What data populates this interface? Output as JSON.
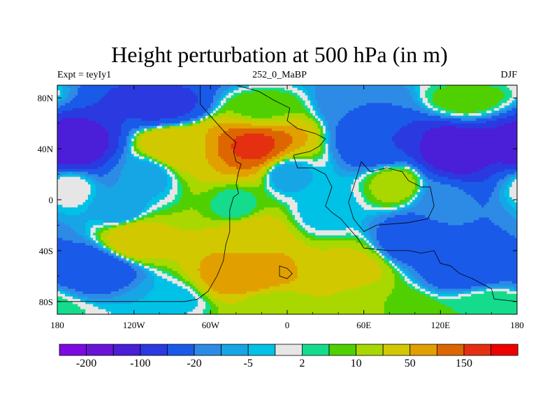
{
  "title": "Height perturbation at 500 hPa (in m)",
  "subtitle_left": "Expt = teyIy1",
  "subtitle_center": "252_0_MaBP",
  "subtitle_right": "DJF",
  "chart_data": {
    "type": "filled-contour map",
    "variable": "Height perturbation at 500 hPa",
    "units": "m",
    "xlim": [
      -180,
      180
    ],
    "ylim": [
      -90,
      90
    ],
    "x_ticks": [
      {
        "value": -180,
        "label": "180"
      },
      {
        "value": -120,
        "label": "120W"
      },
      {
        "value": -60,
        "label": "60W"
      },
      {
        "value": 0,
        "label": "0"
      },
      {
        "value": 60,
        "label": "60E"
      },
      {
        "value": 120,
        "label": "120E"
      },
      {
        "value": 180,
        "label": "180"
      }
    ],
    "y_ticks": [
      {
        "value": 80,
        "label": "80N"
      },
      {
        "value": 40,
        "label": "40N"
      },
      {
        "value": 0,
        "label": "0"
      },
      {
        "value": -40,
        "label": "40S"
      },
      {
        "value": -80,
        "label": "80S"
      }
    ],
    "colorbar": {
      "colors": [
        "#7d0ae3",
        "#6a14d8",
        "#4b1ed8",
        "#2a3ae0",
        "#1a5ae8",
        "#2d8be6",
        "#16a6e6",
        "#00c2e6",
        "#e6e6e6",
        "#14dc8c",
        "#50d000",
        "#a8d800",
        "#d2c800",
        "#e1a000",
        "#de6600",
        "#e43010",
        "#ee0000"
      ],
      "labels": [
        {
          "after_box": 1,
          "label": "-200"
        },
        {
          "after_box": 3,
          "label": "-100"
        },
        {
          "after_box": 5,
          "label": "-20"
        },
        {
          "after_box": 7,
          "label": "-5"
        },
        {
          "after_box": 9,
          "label": "2"
        },
        {
          "after_box": 11,
          "label": "10"
        },
        {
          "after_box": 13,
          "label": "50"
        },
        {
          "after_box": 15,
          "label": "150"
        }
      ]
    },
    "field_centers": [
      {
        "lon": -100,
        "lat": 75,
        "value": -60
      },
      {
        "lon": -20,
        "lat": 72,
        "value": 8
      },
      {
        "lon": 60,
        "lat": 75,
        "value": -20
      },
      {
        "lon": 140,
        "lat": 78,
        "value": 8
      },
      {
        "lon": -25,
        "lat": 42,
        "value": 160
      },
      {
        "lon": -90,
        "lat": 42,
        "value": 40
      },
      {
        "lon": -170,
        "lat": 42,
        "value": -150
      },
      {
        "lon": 130,
        "lat": 40,
        "value": -150
      },
      {
        "lon": 75,
        "lat": 45,
        "value": -50
      },
      {
        "lon": -110,
        "lat": 20,
        "value": -8
      },
      {
        "lon": 0,
        "lat": 20,
        "value": -8
      },
      {
        "lon": 85,
        "lat": 12,
        "value": 15
      },
      {
        "lon": -170,
        "lat": 10,
        "value": 1
      },
      {
        "lon": -130,
        "lat": -8,
        "value": -10
      },
      {
        "lon": -40,
        "lat": -5,
        "value": 2
      },
      {
        "lon": 30,
        "lat": -8,
        "value": -5
      },
      {
        "lon": 120,
        "lat": -2,
        "value": -12
      },
      {
        "lon": -120,
        "lat": -30,
        "value": 35
      },
      {
        "lon": -30,
        "lat": -28,
        "value": 35
      },
      {
        "lon": 100,
        "lat": -30,
        "value": -40
      },
      {
        "lon": -150,
        "lat": -55,
        "value": -40
      },
      {
        "lon": -30,
        "lat": -60,
        "value": 100
      },
      {
        "lon": 50,
        "lat": -55,
        "value": 25
      },
      {
        "lon": 140,
        "lat": -55,
        "value": -40
      },
      {
        "lon": -95,
        "lat": -78,
        "value": -5
      },
      {
        "lon": -10,
        "lat": -80,
        "value": 15
      },
      {
        "lon": 80,
        "lat": -82,
        "value": 10
      },
      {
        "lon": 160,
        "lat": -82,
        "value": 5
      }
    ],
    "landmasses": [
      {
        "name": "americas",
        "lonlat": [
          [
            -68,
            90
          ],
          [
            -68,
            75
          ],
          [
            -62,
            68
          ],
          [
            -55,
            60
          ],
          [
            -48,
            52
          ],
          [
            -40,
            45
          ],
          [
            -42,
            38
          ],
          [
            -40,
            30
          ],
          [
            -36,
            28
          ],
          [
            -38,
            22
          ],
          [
            -40,
            12
          ],
          [
            -38,
            5
          ],
          [
            -42,
            2
          ],
          [
            -45,
            -8
          ],
          [
            -45,
            -25
          ],
          [
            -48,
            -35
          ],
          [
            -50,
            -48
          ],
          [
            -55,
            -60
          ],
          [
            -62,
            -72
          ],
          [
            -70,
            -78
          ],
          [
            -80,
            -80
          ],
          [
            -180,
            -80
          ],
          [
            -180,
            -90
          ],
          [
            180,
            -90
          ],
          [
            180,
            -80
          ],
          [
            162,
            -78
          ],
          [
            160,
            -70
          ],
          [
            145,
            -62
          ],
          [
            135,
            -58
          ],
          [
            128,
            -52
          ],
          [
            120,
            -50
          ],
          [
            115,
            -40
          ],
          [
            105,
            -42
          ],
          [
            95,
            -40
          ],
          [
            80,
            -40
          ],
          [
            60,
            -38
          ],
          [
            55,
            -30
          ],
          [
            48,
            -22
          ],
          [
            42,
            -15
          ],
          [
            35,
            -10
          ],
          [
            30,
            -5
          ],
          [
            35,
            10
          ],
          [
            30,
            20
          ],
          [
            20,
            25
          ],
          [
            8,
            25
          ],
          [
            5,
            35
          ],
          [
            18,
            38
          ],
          [
            25,
            42
          ],
          [
            30,
            48
          ],
          [
            22,
            52
          ],
          [
            8,
            56
          ],
          [
            0,
            62
          ],
          [
            2,
            72
          ],
          [
            -10,
            78
          ],
          [
            -22,
            85
          ],
          [
            -40,
            90
          ]
        ]
      },
      {
        "name": "east-landmass",
        "lonlat": [
          [
            60,
            -25
          ],
          [
            70,
            -20
          ],
          [
            95,
            -18
          ],
          [
            110,
            -15
          ],
          [
            115,
            -5
          ],
          [
            112,
            10
          ],
          [
            105,
            10
          ],
          [
            95,
            15
          ],
          [
            90,
            22
          ],
          [
            78,
            25
          ],
          [
            65,
            22
          ],
          [
            58,
            30
          ],
          [
            52,
            10
          ],
          [
            48,
            -2
          ],
          [
            52,
            -15
          ]
        ]
      },
      {
        "name": "island",
        "lonlat": [
          [
            -6,
            -52
          ],
          [
            0,
            -54
          ],
          [
            4,
            -58
          ],
          [
            0,
            -62
          ],
          [
            -6,
            -60
          ]
        ]
      }
    ]
  }
}
